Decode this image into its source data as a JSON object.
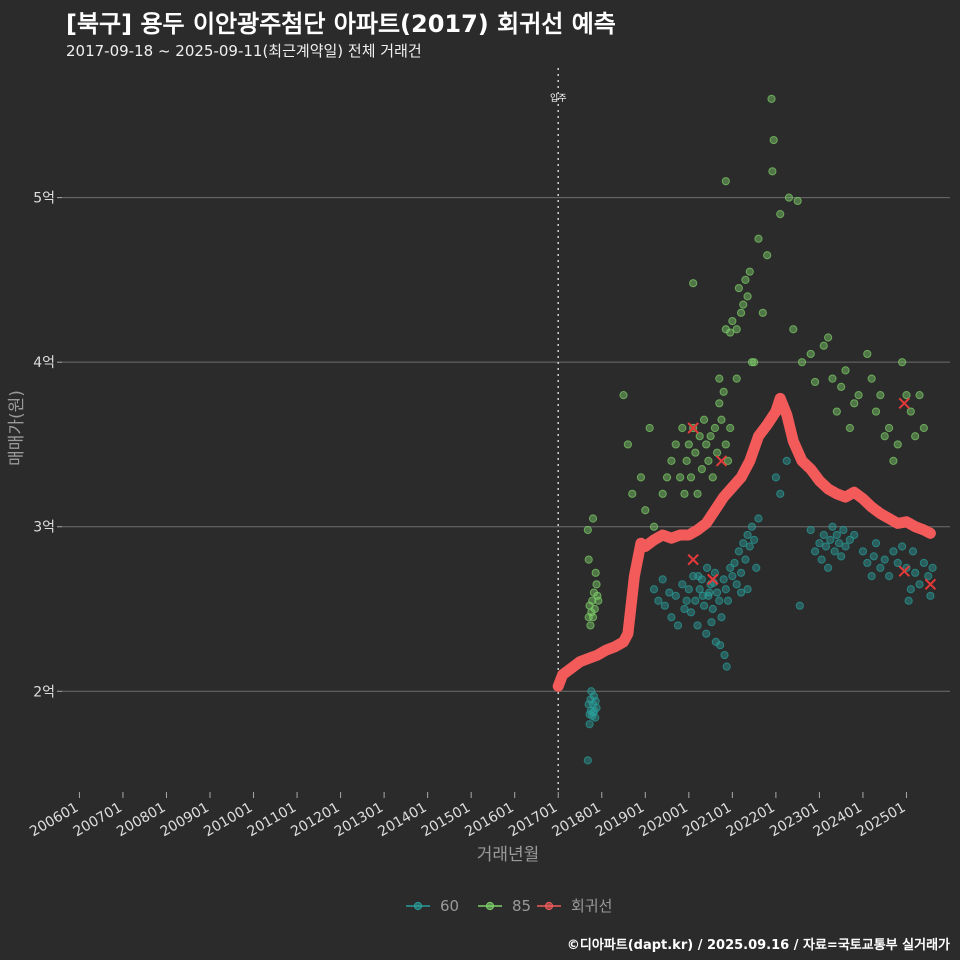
{
  "title": "[북구] 용두 이안광주첨단 아파트(2017) 회귀선 예측",
  "subtitle": "2017-09-18 ~ 2025-09-11(최근계약일) 전체 거래건",
  "caption": "©디아파트(dapt.kr) / 2025.09.16 / 자료=국토교통부 실거래가",
  "colors": {
    "background": "#2b2b2b",
    "grid": "#6e6e6e",
    "s60": "#2a9d9a",
    "s85": "#7fd06a",
    "regression": "#f35b5b"
  },
  "chart_data": {
    "type": "scatter",
    "xlabel": "거래년월",
    "ylabel": "매매가(원)",
    "x_unit": "year (decimal)",
    "y_unit": "억원",
    "xlim": [
      2005.6,
      2026.0
    ],
    "ylim": [
      1.4,
      5.8
    ],
    "x_ticks": [
      {
        "x": 2006.0,
        "label": "200601"
      },
      {
        "x": 2007.0,
        "label": "200701"
      },
      {
        "x": 2008.0,
        "label": "200801"
      },
      {
        "x": 2009.0,
        "label": "200901"
      },
      {
        "x": 2010.0,
        "label": "201001"
      },
      {
        "x": 2011.0,
        "label": "201101"
      },
      {
        "x": 2012.0,
        "label": "201201"
      },
      {
        "x": 2013.0,
        "label": "201301"
      },
      {
        "x": 2014.0,
        "label": "201401"
      },
      {
        "x": 2015.0,
        "label": "201501"
      },
      {
        "x": 2016.0,
        "label": "201601"
      },
      {
        "x": 2017.0,
        "label": "201701"
      },
      {
        "x": 2018.0,
        "label": "201801"
      },
      {
        "x": 2019.0,
        "label": "201901"
      },
      {
        "x": 2020.0,
        "label": "202001"
      },
      {
        "x": 2021.0,
        "label": "202101"
      },
      {
        "x": 2022.0,
        "label": "202201"
      },
      {
        "x": 2023.0,
        "label": "202301"
      },
      {
        "x": 2024.0,
        "label": "202401"
      },
      {
        "x": 2025.0,
        "label": "202501"
      }
    ],
    "y_ticks": [
      {
        "y": 2,
        "label": "2억"
      },
      {
        "y": 3,
        "label": "3억"
      },
      {
        "y": 4,
        "label": "4억"
      },
      {
        "y": 5,
        "label": "5억"
      }
    ],
    "vline": {
      "x": 2017.0,
      "label": "입주"
    },
    "legend": {
      "position": "bottom",
      "items": [
        {
          "key": "s60",
          "label": "60"
        },
        {
          "key": "s85",
          "label": "85"
        },
        {
          "key": "regression",
          "label": "회귀선"
        }
      ]
    },
    "series": [
      {
        "name": "60",
        "key": "s60",
        "points": [
          [
            2017.7,
            1.92
          ],
          [
            2017.72,
            1.86
          ],
          [
            2017.74,
            1.95
          ],
          [
            2017.75,
            1.88
          ],
          [
            2017.76,
            2.0
          ],
          [
            2017.78,
            1.85
          ],
          [
            2017.8,
            1.92
          ],
          [
            2017.82,
            1.97
          ],
          [
            2017.83,
            1.88
          ],
          [
            2017.85,
            1.84
          ],
          [
            2017.86,
            1.94
          ],
          [
            2017.88,
            1.9
          ],
          [
            2017.68,
            1.58
          ],
          [
            2017.72,
            1.8
          ],
          [
            2017.8,
            1.87
          ],
          [
            2019.2,
            2.62
          ],
          [
            2019.3,
            2.55
          ],
          [
            2019.4,
            2.68
          ],
          [
            2019.45,
            2.52
          ],
          [
            2019.55,
            2.6
          ],
          [
            2019.6,
            2.45
          ],
          [
            2019.7,
            2.58
          ],
          [
            2019.75,
            2.4
          ],
          [
            2019.85,
            2.65
          ],
          [
            2019.9,
            2.5
          ],
          [
            2019.95,
            2.55
          ],
          [
            2020.0,
            2.62
          ],
          [
            2020.05,
            2.48
          ],
          [
            2020.1,
            2.7
          ],
          [
            2020.15,
            2.55
          ],
          [
            2020.2,
            2.4
          ],
          [
            2020.25,
            2.62
          ],
          [
            2020.3,
            2.68
          ],
          [
            2020.35,
            2.52
          ],
          [
            2020.4,
            2.35
          ],
          [
            2020.45,
            2.58
          ],
          [
            2020.5,
            2.65
          ],
          [
            2020.55,
            2.5
          ],
          [
            2020.6,
            2.72
          ],
          [
            2020.65,
            2.6
          ],
          [
            2020.7,
            2.55
          ],
          [
            2020.75,
            2.45
          ],
          [
            2020.8,
            2.68
          ],
          [
            2020.85,
            2.62
          ],
          [
            2020.9,
            2.55
          ],
          [
            2020.95,
            2.75
          ],
          [
            2020.22,
            2.7
          ],
          [
            2020.32,
            2.58
          ],
          [
            2020.42,
            2.75
          ],
          [
            2020.52,
            2.42
          ],
          [
            2020.62,
            2.3
          ],
          [
            2020.72,
            2.28
          ],
          [
            2020.82,
            2.22
          ],
          [
            2020.87,
            2.15
          ],
          [
            2020.47,
            2.6
          ],
          [
            2020.57,
            2.66
          ],
          [
            2021.0,
            2.7
          ],
          [
            2021.05,
            2.78
          ],
          [
            2021.1,
            2.65
          ],
          [
            2021.15,
            2.85
          ],
          [
            2021.2,
            2.72
          ],
          [
            2021.25,
            2.9
          ],
          [
            2021.3,
            2.8
          ],
          [
            2021.35,
            2.95
          ],
          [
            2021.4,
            2.88
          ],
          [
            2021.45,
            3.0
          ],
          [
            2021.5,
            2.92
          ],
          [
            2021.55,
            2.75
          ],
          [
            2021.6,
            3.05
          ],
          [
            2021.2,
            2.6
          ],
          [
            2021.35,
            2.62
          ],
          [
            2022.0,
            3.3
          ],
          [
            2022.1,
            3.2
          ],
          [
            2022.25,
            3.4
          ],
          [
            2022.55,
            2.52
          ],
          [
            2022.8,
            2.98
          ],
          [
            2022.9,
            2.85
          ],
          [
            2023.0,
            2.9
          ],
          [
            2023.05,
            2.8
          ],
          [
            2023.1,
            2.95
          ],
          [
            2023.15,
            2.88
          ],
          [
            2023.2,
            2.75
          ],
          [
            2023.25,
            2.92
          ],
          [
            2023.3,
            3.0
          ],
          [
            2023.35,
            2.85
          ],
          [
            2023.4,
            2.95
          ],
          [
            2023.45,
            2.9
          ],
          [
            2023.5,
            2.82
          ],
          [
            2023.55,
            2.98
          ],
          [
            2023.6,
            2.88
          ],
          [
            2023.7,
            2.92
          ],
          [
            2023.8,
            2.95
          ],
          [
            2024.0,
            2.85
          ],
          [
            2024.1,
            2.78
          ],
          [
            2024.2,
            2.7
          ],
          [
            2024.25,
            2.82
          ],
          [
            2024.3,
            2.9
          ],
          [
            2024.4,
            2.75
          ],
          [
            2024.5,
            2.8
          ],
          [
            2024.6,
            2.7
          ],
          [
            2024.7,
            2.85
          ],
          [
            2024.8,
            2.78
          ],
          [
            2024.9,
            2.88
          ],
          [
            2025.0,
            2.75
          ],
          [
            2025.1,
            2.62
          ],
          [
            2025.2,
            2.72
          ],
          [
            2025.3,
            2.65
          ],
          [
            2025.4,
            2.78
          ],
          [
            2025.5,
            2.7
          ],
          [
            2025.55,
            2.58
          ],
          [
            2025.6,
            2.75
          ],
          [
            2025.05,
            2.55
          ],
          [
            2025.15,
            2.85
          ]
        ]
      },
      {
        "name": "85",
        "key": "s85",
        "points": [
          [
            2017.7,
            2.45
          ],
          [
            2017.72,
            2.52
          ],
          [
            2017.74,
            2.4
          ],
          [
            2017.76,
            2.48
          ],
          [
            2017.78,
            2.55
          ],
          [
            2017.8,
            2.45
          ],
          [
            2017.82,
            2.6
          ],
          [
            2017.84,
            2.5
          ],
          [
            2017.86,
            2.72
          ],
          [
            2017.88,
            2.65
          ],
          [
            2017.9,
            2.58
          ],
          [
            2017.7,
            2.8
          ],
          [
            2017.8,
            3.05
          ],
          [
            2017.68,
            2.98
          ],
          [
            2017.92,
            2.55
          ],
          [
            2018.5,
            3.8
          ],
          [
            2018.6,
            3.5
          ],
          [
            2018.7,
            3.2
          ],
          [
            2018.9,
            3.3
          ],
          [
            2019.0,
            3.1
          ],
          [
            2019.1,
            3.6
          ],
          [
            2019.2,
            3.0
          ],
          [
            2019.4,
            3.2
          ],
          [
            2019.5,
            3.3
          ],
          [
            2019.6,
            3.4
          ],
          [
            2019.7,
            3.5
          ],
          [
            2019.8,
            3.3
          ],
          [
            2019.85,
            3.6
          ],
          [
            2019.9,
            3.2
          ],
          [
            2019.95,
            3.4
          ],
          [
            2020.0,
            3.5
          ],
          [
            2020.05,
            3.3
          ],
          [
            2020.1,
            3.6
          ],
          [
            2020.15,
            3.45
          ],
          [
            2020.2,
            3.2
          ],
          [
            2020.25,
            3.55
          ],
          [
            2020.3,
            3.35
          ],
          [
            2020.35,
            3.65
          ],
          [
            2020.4,
            3.5
          ],
          [
            2020.45,
            3.4
          ],
          [
            2020.5,
            3.55
          ],
          [
            2020.55,
            3.3
          ],
          [
            2020.6,
            3.6
          ],
          [
            2020.65,
            3.45
          ],
          [
            2020.7,
            3.75
          ],
          [
            2020.75,
            3.65
          ],
          [
            2020.8,
            3.82
          ],
          [
            2020.85,
            3.5
          ],
          [
            2020.9,
            3.4
          ],
          [
            2020.95,
            3.6
          ],
          [
            2020.1,
            4.48
          ],
          [
            2020.7,
            3.9
          ],
          [
            2020.85,
            4.2
          ],
          [
            2020.95,
            4.18
          ],
          [
            2021.0,
            4.25
          ],
          [
            2021.1,
            4.2
          ],
          [
            2021.15,
            4.45
          ],
          [
            2021.2,
            4.3
          ],
          [
            2021.25,
            4.35
          ],
          [
            2021.3,
            4.5
          ],
          [
            2021.35,
            4.4
          ],
          [
            2021.4,
            4.55
          ],
          [
            2021.5,
            4.0
          ],
          [
            2021.6,
            4.75
          ],
          [
            2021.7,
            4.3
          ],
          [
            2021.8,
            4.65
          ],
          [
            2021.1,
            3.9
          ],
          [
            2021.45,
            4.0
          ],
          [
            2020.85,
            5.1
          ],
          [
            2021.9,
            5.6
          ],
          [
            2021.95,
            5.35
          ],
          [
            2021.92,
            5.16
          ],
          [
            2022.1,
            4.9
          ],
          [
            2022.3,
            5.0
          ],
          [
            2022.5,
            4.98
          ],
          [
            2022.4,
            4.2
          ],
          [
            2022.6,
            4.0
          ],
          [
            2022.8,
            4.05
          ],
          [
            2022.9,
            3.88
          ],
          [
            2023.1,
            4.1
          ],
          [
            2023.2,
            4.15
          ],
          [
            2023.3,
            3.9
          ],
          [
            2023.4,
            3.7
          ],
          [
            2023.5,
            3.85
          ],
          [
            2023.6,
            3.95
          ],
          [
            2023.7,
            3.6
          ],
          [
            2023.8,
            3.75
          ],
          [
            2023.9,
            3.8
          ],
          [
            2024.1,
            4.05
          ],
          [
            2024.2,
            3.9
          ],
          [
            2024.3,
            3.7
          ],
          [
            2024.4,
            3.8
          ],
          [
            2024.5,
            3.55
          ],
          [
            2024.6,
            3.6
          ],
          [
            2024.7,
            3.4
          ],
          [
            2024.8,
            3.5
          ],
          [
            2024.9,
            4.0
          ],
          [
            2025.0,
            3.8
          ],
          [
            2025.1,
            3.7
          ],
          [
            2025.2,
            3.55
          ],
          [
            2025.3,
            3.8
          ],
          [
            2025.4,
            3.6
          ]
        ]
      },
      {
        "name": "회귀선",
        "key": "regression",
        "type": "line",
        "points": [
          [
            2017.0,
            2.03
          ],
          [
            2017.1,
            2.1
          ],
          [
            2017.3,
            2.14
          ],
          [
            2017.5,
            2.18
          ],
          [
            2017.7,
            2.2
          ],
          [
            2017.9,
            2.22
          ],
          [
            2018.1,
            2.25
          ],
          [
            2018.3,
            2.27
          ],
          [
            2018.5,
            2.3
          ],
          [
            2018.6,
            2.35
          ],
          [
            2018.75,
            2.7
          ],
          [
            2018.9,
            2.9
          ],
          [
            2019.0,
            2.88
          ],
          [
            2019.2,
            2.92
          ],
          [
            2019.4,
            2.95
          ],
          [
            2019.6,
            2.93
          ],
          [
            2019.8,
            2.95
          ],
          [
            2020.0,
            2.95
          ],
          [
            2020.2,
            2.98
          ],
          [
            2020.4,
            3.02
          ],
          [
            2020.6,
            3.1
          ],
          [
            2020.8,
            3.18
          ],
          [
            2021.0,
            3.24
          ],
          [
            2021.2,
            3.3
          ],
          [
            2021.4,
            3.4
          ],
          [
            2021.6,
            3.55
          ],
          [
            2021.8,
            3.62
          ],
          [
            2022.0,
            3.7
          ],
          [
            2022.1,
            3.78
          ],
          [
            2022.25,
            3.68
          ],
          [
            2022.4,
            3.52
          ],
          [
            2022.6,
            3.4
          ],
          [
            2022.8,
            3.35
          ],
          [
            2023.0,
            3.28
          ],
          [
            2023.2,
            3.23
          ],
          [
            2023.4,
            3.2
          ],
          [
            2023.6,
            3.18
          ],
          [
            2023.8,
            3.21
          ],
          [
            2024.0,
            3.17
          ],
          [
            2024.2,
            3.12
          ],
          [
            2024.4,
            3.08
          ],
          [
            2024.6,
            3.05
          ],
          [
            2024.8,
            3.02
          ],
          [
            2025.0,
            3.03
          ],
          [
            2025.2,
            3.0
          ],
          [
            2025.4,
            2.98
          ],
          [
            2025.55,
            2.96
          ]
        ]
      }
    ],
    "markers": [
      [
        2020.1,
        3.6
      ],
      [
        2020.75,
        3.4
      ],
      [
        2020.55,
        2.68
      ],
      [
        2020.1,
        2.8
      ],
      [
        2024.95,
        3.75
      ],
      [
        2024.95,
        2.73
      ],
      [
        2025.55,
        2.65
      ]
    ]
  }
}
